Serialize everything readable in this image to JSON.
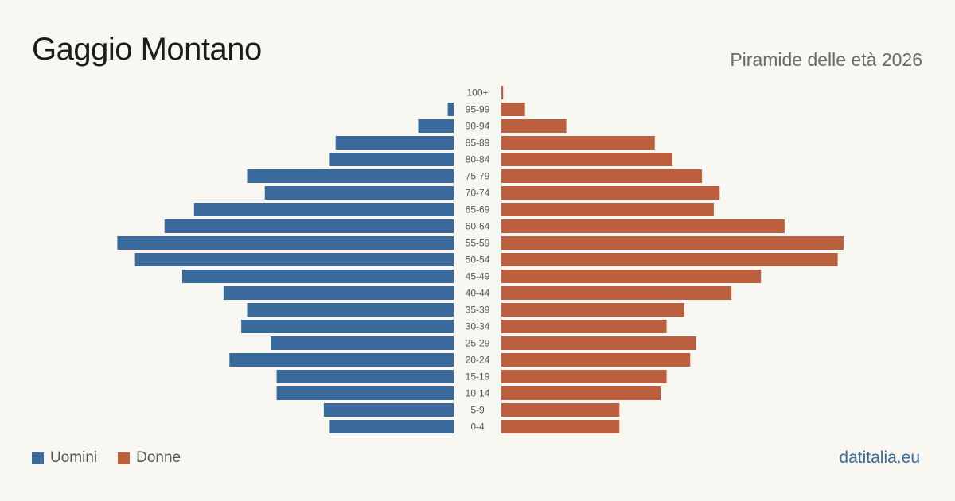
{
  "header": {
    "title": "Gaggio Montano",
    "subtitle": "Piramide delle età 2026"
  },
  "legend": {
    "men_label": "Uomini",
    "women_label": "Donne"
  },
  "footer": {
    "site": "datitalia.eu"
  },
  "colors": {
    "men": "#3a6a9b",
    "women": "#bb5f3e",
    "background": "#f9f7f2"
  },
  "chart_data": {
    "type": "bar",
    "orientation": "horizontal-pyramid",
    "categories": [
      "100+",
      "95-99",
      "90-94",
      "85-89",
      "80-84",
      "75-79",
      "70-74",
      "65-69",
      "60-64",
      "55-59",
      "50-54",
      "45-49",
      "40-44",
      "35-39",
      "30-34",
      "25-29",
      "20-24",
      "15-19",
      "10-14",
      "5-9",
      "0-4"
    ],
    "series": [
      {
        "name": "Uomini",
        "values": [
          0,
          1,
          6,
          20,
          21,
          35,
          32,
          44,
          49,
          57,
          54,
          46,
          39,
          35,
          36,
          31,
          38,
          30,
          30,
          22,
          21
        ]
      },
      {
        "name": "Donne",
        "values": [
          0.3,
          4,
          11,
          26,
          29,
          34,
          37,
          36,
          48,
          58,
          57,
          44,
          39,
          31,
          28,
          33,
          32,
          28,
          27,
          20,
          20
        ]
      }
    ],
    "title": "",
    "xlabel": "",
    "ylabel": ""
  }
}
